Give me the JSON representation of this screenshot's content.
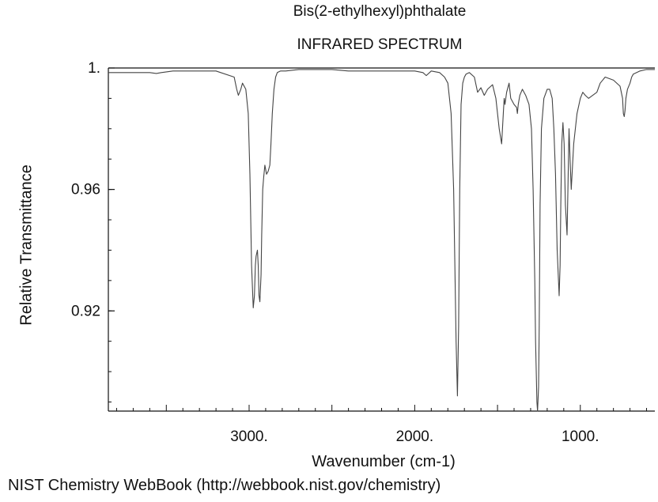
{
  "chart_data": {
    "type": "line",
    "title": "Bis(2-ethylhexyl)phthalate",
    "subtitle": "INFRARED SPECTRUM",
    "xlabel": "Wavenumber (cm-1)",
    "ylabel": "Relative Transmittance",
    "xlim": [
      3850,
      550
    ],
    "ylim": [
      0.887,
      1.0
    ],
    "x_reversed": true,
    "grid": false,
    "x_ticks": [
      {
        "value": 3000,
        "label": "3000."
      },
      {
        "value": 2000,
        "label": "2000."
      },
      {
        "value": 1000,
        "label": "1000."
      }
    ],
    "y_ticks": [
      {
        "value": 1.0,
        "label": "1."
      },
      {
        "value": 0.96,
        "label": "0.96"
      },
      {
        "value": 0.92,
        "label": "0.92"
      }
    ],
    "series": [
      {
        "x": [
          3850,
          3600,
          3560,
          3530,
          3460,
          3300,
          3200,
          3090,
          3075,
          3065,
          3050,
          3040,
          3020,
          3005,
          2995,
          2985,
          2975,
          2968,
          2962,
          2958,
          2950,
          2945,
          2940,
          2935,
          2928,
          2924,
          2918,
          2912,
          2905,
          2895,
          2885,
          2875,
          2868,
          2860,
          2850,
          2840,
          2830,
          2810,
          2780,
          2700,
          2600,
          2500,
          2400,
          2300,
          2100,
          2000,
          1950,
          1930,
          1900,
          1850,
          1820,
          1800,
          1780,
          1765,
          1750,
          1742,
          1735,
          1728,
          1720,
          1710,
          1700,
          1690,
          1670,
          1640,
          1620,
          1600,
          1580,
          1560,
          1530,
          1510,
          1490,
          1475,
          1465,
          1460,
          1455,
          1445,
          1430,
          1420,
          1400,
          1385,
          1380,
          1375,
          1365,
          1350,
          1330,
          1310,
          1295,
          1285,
          1275,
          1270,
          1262,
          1258,
          1252,
          1248,
          1243,
          1235,
          1220,
          1200,
          1185,
          1170,
          1160,
          1150,
          1140,
          1128,
          1122,
          1118,
          1112,
          1105,
          1098,
          1090,
          1080,
          1075,
          1070,
          1068,
          1062,
          1055,
          1040,
          1020,
          1000,
          985,
          970,
          950,
          900,
          880,
          850,
          800,
          760,
          745,
          740,
          735,
          730,
          725,
          715,
          700,
          690,
          680,
          640,
          600,
          550
        ],
        "y": [
          0.9985,
          0.9985,
          0.9982,
          0.9985,
          0.999,
          0.999,
          0.999,
          0.997,
          0.993,
          0.991,
          0.993,
          0.995,
          0.993,
          0.985,
          0.965,
          0.935,
          0.921,
          0.925,
          0.935,
          0.938,
          0.94,
          0.935,
          0.925,
          0.923,
          0.932,
          0.945,
          0.96,
          0.964,
          0.968,
          0.965,
          0.966,
          0.968,
          0.975,
          0.985,
          0.993,
          0.997,
          0.9985,
          0.999,
          0.999,
          0.9995,
          0.9995,
          0.9995,
          0.999,
          0.999,
          0.999,
          0.999,
          0.9985,
          0.9975,
          0.999,
          0.9985,
          0.997,
          0.995,
          0.985,
          0.96,
          0.91,
          0.892,
          0.915,
          0.96,
          0.988,
          0.995,
          0.997,
          0.998,
          0.9985,
          0.997,
          0.992,
          0.9935,
          0.991,
          0.993,
          0.9945,
          0.99,
          0.98,
          0.975,
          0.985,
          0.99,
          0.988,
          0.992,
          0.995,
          0.99,
          0.988,
          0.987,
          0.985,
          0.988,
          0.991,
          0.993,
          0.991,
          0.988,
          0.98,
          0.96,
          0.93,
          0.91,
          0.89,
          0.887,
          0.895,
          0.915,
          0.955,
          0.98,
          0.99,
          0.993,
          0.993,
          0.99,
          0.98,
          0.965,
          0.94,
          0.925,
          0.935,
          0.955,
          0.975,
          0.982,
          0.975,
          0.955,
          0.945,
          0.96,
          0.975,
          0.98,
          0.97,
          0.96,
          0.975,
          0.985,
          0.99,
          0.992,
          0.991,
          0.99,
          0.992,
          0.995,
          0.997,
          0.996,
          0.994,
          0.99,
          0.985,
          0.984,
          0.986,
          0.99,
          0.993,
          0.995,
          0.997,
          0.998,
          0.999,
          0.9995,
          0.9995
        ]
      }
    ]
  },
  "footer": "NIST Chemistry WebBook (http://webbook.nist.gov/chemistry)",
  "colors": {
    "trace": "#444444",
    "frame": "#111111"
  }
}
